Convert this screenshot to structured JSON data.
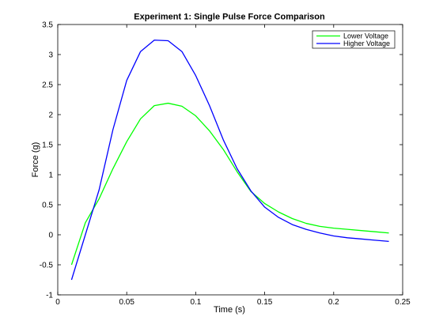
{
  "chart_data": {
    "type": "line",
    "title": "Experiment 1: Single Pulse Force Comparison",
    "xlabel": "Time (s)",
    "ylabel": "Force (g)",
    "xlim": [
      0,
      0.25
    ],
    "ylim": [
      -1,
      3.5
    ],
    "xticks": [
      0,
      0.05,
      0.1,
      0.15,
      0.2,
      0.25
    ],
    "xtick_labels": [
      "0",
      "0.05",
      "0.1",
      "0.15",
      "0.2",
      "0.25"
    ],
    "yticks": [
      -1,
      -0.5,
      0,
      0.5,
      1,
      1.5,
      2,
      2.5,
      3,
      3.5
    ],
    "ytick_labels": [
      "-1",
      "-0.5",
      "0",
      "0.5",
      "1",
      "1.5",
      "2",
      "2.5",
      "3",
      "3.5"
    ],
    "grid": false,
    "legend_position": "top-right",
    "x": [
      0.01,
      0.02,
      0.03,
      0.04,
      0.05,
      0.06,
      0.07,
      0.08,
      0.09,
      0.1,
      0.11,
      0.12,
      0.13,
      0.14,
      0.15,
      0.16,
      0.17,
      0.18,
      0.19,
      0.2,
      0.21,
      0.22,
      0.23,
      0.24
    ],
    "series": [
      {
        "name": "Lower Voltage",
        "color": "#00ff00",
        "values": [
          -0.5,
          0.2,
          0.6,
          1.1,
          1.55,
          1.93,
          2.15,
          2.19,
          2.14,
          1.98,
          1.73,
          1.42,
          1.05,
          0.72,
          0.52,
          0.38,
          0.27,
          0.19,
          0.14,
          0.11,
          0.09,
          0.07,
          0.05,
          0.03
        ]
      },
      {
        "name": "Higher Voltage",
        "color": "#0000ff",
        "values": [
          -0.75,
          0.0,
          0.75,
          1.75,
          2.57,
          3.05,
          3.24,
          3.23,
          3.05,
          2.65,
          2.15,
          1.58,
          1.1,
          0.73,
          0.46,
          0.29,
          0.17,
          0.09,
          0.03,
          -0.02,
          -0.05,
          -0.07,
          -0.09,
          -0.11
        ]
      }
    ]
  }
}
